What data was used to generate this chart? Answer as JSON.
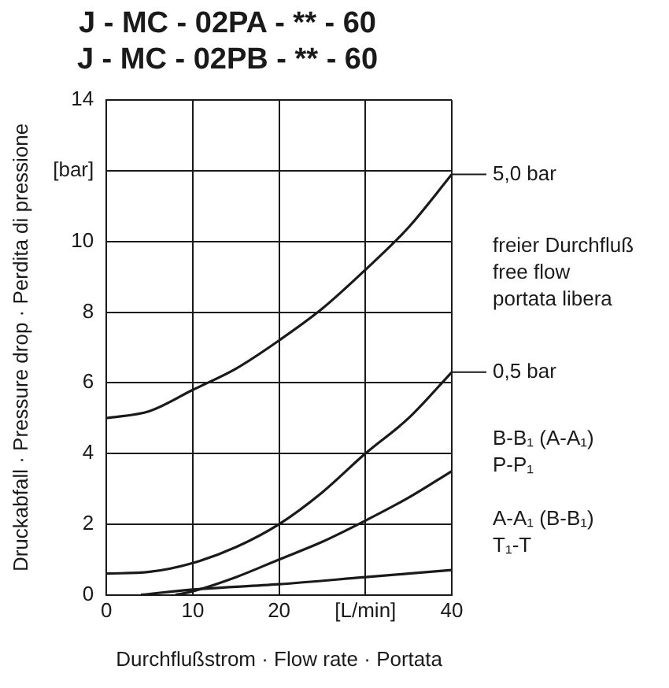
{
  "chart_data": {
    "type": "line",
    "title": "J - MC - 02PA - ** - 60\nJ - MC - 02PB - ** - 60",
    "xlabel": "Durchflußstrom · Flow rate · Portata",
    "ylabel": "Druckabfall · Pressure drop · Perdita di pressione",
    "xlim": [
      0,
      40
    ],
    "xticks": [
      0,
      10,
      {
        "value": 20,
        "label": "20"
      },
      {
        "value": 30,
        "label": "[L/min]"
      },
      40
    ],
    "ylim": [
      0,
      14
    ],
    "yticks": [
      0,
      2,
      4,
      6,
      8,
      10,
      {
        "value": 12,
        "label": "[bar]"
      },
      14
    ],
    "grid": true,
    "legend": false,
    "marker": "none",
    "line_style": "solid",
    "series": [
      {
        "color": "#1a1a1a",
        "x": [
          0,
          5,
          10,
          15,
          20,
          25,
          30,
          35,
          40
        ],
        "values": [
          5.0,
          5.2,
          5.8,
          6.4,
          7.2,
          8.1,
          9.2,
          10.4,
          11.9
        ]
      },
      {
        "color": "#1a1a1a",
        "x": [
          0,
          5,
          10,
          15,
          20,
          25,
          30,
          35,
          40
        ],
        "values": [
          0.6,
          0.65,
          0.9,
          1.35,
          2.0,
          2.9,
          4.0,
          5.0,
          6.3
        ]
      },
      {
        "color": "#1a1a1a",
        "x": [
          8,
          10,
          15,
          20,
          25,
          30,
          35,
          40
        ],
        "values": [
          0,
          0.1,
          0.5,
          1.0,
          1.5,
          2.1,
          2.75,
          3.5
        ]
      },
      {
        "color": "#1a1a1a",
        "x": [
          4,
          10,
          20,
          30,
          40
        ],
        "values": [
          0,
          0.15,
          0.3,
          0.5,
          0.7
        ]
      }
    ],
    "annotations": [
      {
        "text": "5,0 bar",
        "x": 40,
        "y": 11.9
      },
      "freier Durchfluß\nfree flow\nportata libera",
      {
        "text": "0,5 bar",
        "x": 40,
        "y": 6.3
      },
      "B-B₁ (A-A₁)\nP-P₁",
      "A-A₁ (B-B₁)\nT₁-T"
    ]
  }
}
